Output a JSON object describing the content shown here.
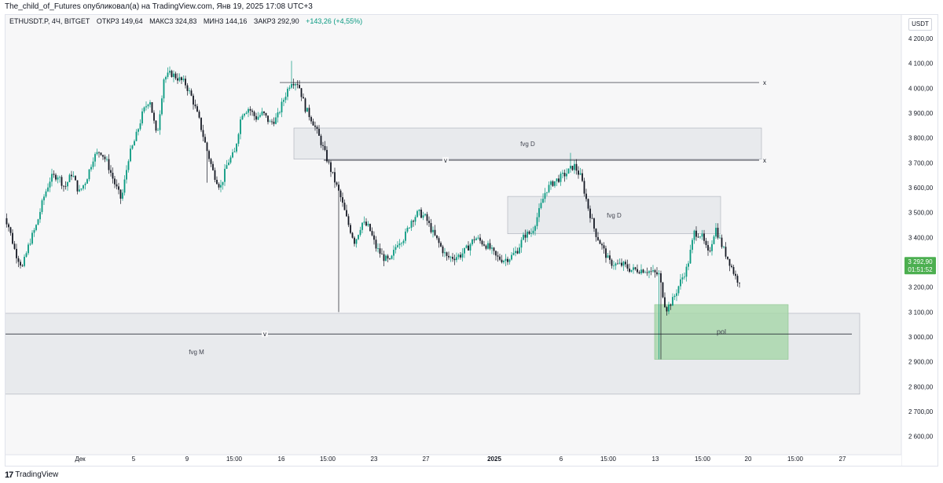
{
  "header": {
    "publish_line": "The_child_of_Futures опубликовал(а) на TradingView.com, Янв 19, 2025 17:08 UTC+3"
  },
  "legend": {
    "symbol": "ETHUSDT.P, 4Ч, BITGET",
    "open": "ОТКР3 149,64",
    "high": "МАКС3 324,83",
    "low": "МИН3 144,16",
    "close": "ЗАКР3 292,90",
    "change": "+143,26 (+4,55%)"
  },
  "price_axis": {
    "currency": "USDT",
    "labels": [
      "4 200,00",
      "4 100,00",
      "4 000,00",
      "3 900,00",
      "3 800,00",
      "3 700,00",
      "3 600,00",
      "3 500,00",
      "3 400,00",
      "3 300,00",
      "3 200,00",
      "3 100,00",
      "3 000,00",
      "2 900,00",
      "2 800,00",
      "2 700,00",
      "2 600,00"
    ],
    "current_price": "3 292,90",
    "countdown": "01:51:52"
  },
  "time_axis": {
    "labels": [
      "Дек",
      "5",
      "9",
      "15:00",
      "16",
      "15:00",
      "23",
      "27",
      "2025",
      "6",
      "15:00",
      "13",
      "15:00",
      "20",
      "15:00",
      "27"
    ]
  },
  "annotations": {
    "fvg_upper": "fvg D",
    "fvg_middle": "fvg D",
    "fvg_lower": "fvg M",
    "pol": "pol",
    "line_x_marker": "x",
    "line_v_marker": "v"
  },
  "footer": {
    "brand": "TradingView",
    "logo_glyph": "17"
  },
  "colors": {
    "up": "#089981",
    "down": "#131722",
    "zone": "#e3e5ea",
    "pol_zone": "#a5d6a7",
    "price_badge": "#4caf50"
  },
  "chart_data": {
    "type": "candlestick",
    "symbol": "ETHUSDT.P",
    "timeframe": "4Ч",
    "exchange": "BITGET",
    "y_range": [
      2560,
      4250
    ],
    "last": {
      "open": 3149.64,
      "high": 3324.83,
      "low": 3144.16,
      "close": 3292.9,
      "change": 143.26,
      "change_pct": 4.55
    },
    "path": [
      [
        0,
        3520
      ],
      [
        5,
        3450
      ],
      [
        10,
        3340
      ],
      [
        15,
        3280
      ],
      [
        20,
        3380
      ],
      [
        25,
        3450
      ],
      [
        30,
        3560
      ],
      [
        35,
        3640
      ],
      [
        40,
        3650
      ],
      [
        45,
        3600
      ],
      [
        50,
        3660
      ],
      [
        55,
        3580
      ],
      [
        60,
        3630
      ],
      [
        65,
        3720
      ],
      [
        70,
        3750
      ],
      [
        75,
        3700
      ],
      [
        80,
        3620
      ],
      [
        85,
        3550
      ],
      [
        90,
        3720
      ],
      [
        95,
        3800
      ],
      [
        100,
        3900
      ],
      [
        105,
        3960
      ],
      [
        110,
        3800
      ],
      [
        115,
        4040
      ],
      [
        120,
        4060
      ],
      [
        125,
        4040
      ],
      [
        130,
        4020
      ],
      [
        135,
        3960
      ],
      [
        140,
        3870
      ],
      [
        145,
        3760
      ],
      [
        150,
        3660
      ],
      [
        155,
        3600
      ],
      [
        160,
        3700
      ],
      [
        165,
        3740
      ],
      [
        170,
        3900
      ],
      [
        175,
        3920
      ],
      [
        180,
        3880
      ],
      [
        185,
        3900
      ],
      [
        190,
        3860
      ],
      [
        195,
        3880
      ],
      [
        200,
        3960
      ],
      [
        205,
        4030
      ],
      [
        210,
        4020
      ],
      [
        215,
        3920
      ],
      [
        220,
        3870
      ],
      [
        225,
        3800
      ],
      [
        230,
        3720
      ],
      [
        235,
        3640
      ],
      [
        240,
        3560
      ],
      [
        245,
        3460
      ],
      [
        250,
        3380
      ],
      [
        255,
        3460
      ],
      [
        260,
        3440
      ],
      [
        265,
        3360
      ],
      [
        270,
        3320
      ],
      [
        275,
        3300
      ],
      [
        280,
        3380
      ],
      [
        285,
        3400
      ],
      [
        290,
        3470
      ],
      [
        295,
        3500
      ],
      [
        300,
        3480
      ],
      [
        305,
        3420
      ],
      [
        310,
        3370
      ],
      [
        315,
        3320
      ],
      [
        320,
        3320
      ],
      [
        325,
        3330
      ],
      [
        330,
        3360
      ],
      [
        335,
        3400
      ],
      [
        340,
        3380
      ],
      [
        345,
        3360
      ],
      [
        350,
        3320
      ],
      [
        355,
        3310
      ],
      [
        360,
        3320
      ],
      [
        365,
        3350
      ],
      [
        370,
        3410
      ],
      [
        375,
        3420
      ],
      [
        380,
        3500
      ],
      [
        385,
        3590
      ],
      [
        390,
        3620
      ],
      [
        395,
        3640
      ],
      [
        400,
        3660
      ],
      [
        405,
        3690
      ],
      [
        410,
        3640
      ],
      [
        415,
        3520
      ],
      [
        420,
        3420
      ],
      [
        425,
        3360
      ],
      [
        430,
        3300
      ],
      [
        435,
        3290
      ],
      [
        440,
        3290
      ],
      [
        445,
        3270
      ],
      [
        450,
        3270
      ],
      [
        455,
        3270
      ],
      [
        460,
        3260
      ],
      [
        465,
        3250
      ],
      [
        470,
        3110
      ],
      [
        475,
        3150
      ],
      [
        480,
        3220
      ],
      [
        485,
        3280
      ],
      [
        490,
        3420
      ],
      [
        495,
        3410
      ],
      [
        500,
        3330
      ],
      [
        505,
        3440
      ],
      [
        510,
        3360
      ],
      [
        515,
        3300
      ],
      [
        520,
        3230
      ]
    ],
    "candles_from_x": 2,
    "candles_to_x": 940,
    "candle_step_x": 2.5,
    "zones": [
      {
        "label": "fvg D",
        "x_from": 373,
        "x_to": 968,
        "y_from": 3715,
        "y_to": 3840
      },
      {
        "label": "fvg D",
        "x_from": 645,
        "x_to": 916,
        "y_from": 3415,
        "y_to": 3565
      },
      {
        "label": "fvg M",
        "x_from": 2,
        "x_to": 1093,
        "y_from": 2770,
        "y_to": 3095
      },
      {
        "label": "pol",
        "x_from": 832,
        "x_to": 1002,
        "y_from": 2910,
        "y_to": 3130
      }
    ],
    "hlines": [
      {
        "price": 4023,
        "x_from": 355,
        "x_to": 975,
        "marker": "x"
      },
      {
        "price": 3711,
        "x_from": 411,
        "x_to": 975,
        "marker": "x"
      },
      {
        "price": 3711,
        "x_from": 411,
        "x_to": 975,
        "marker": "v",
        "marker_x": 566
      },
      {
        "price": 3012,
        "x_from": 2,
        "x_to": 1093,
        "marker": "v",
        "marker_x": 336
      }
    ]
  }
}
